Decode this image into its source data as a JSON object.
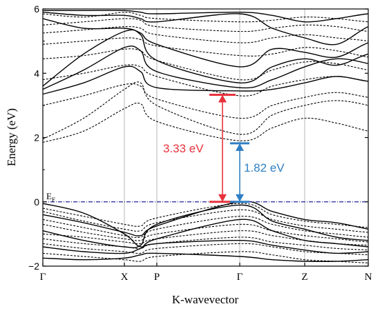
{
  "chart_data": {
    "type": "line",
    "title": "",
    "xlabel": "K-wavevector",
    "ylabel": "Energy (eV)",
    "ylim": [
      -2,
      6
    ],
    "yticks": [
      -2,
      0,
      2,
      4,
      6
    ],
    "kpath": [
      "Γ",
      "X",
      "P",
      "Γ",
      "Z",
      "N"
    ],
    "fermi_label": "E",
    "fermi_label_sub": "F",
    "fermi_level": 0,
    "colors": {
      "axis": "#000000",
      "gap_red": "#e8323c",
      "gap_blue": "#2f7fc4",
      "fermi_line": "#1f1fa0",
      "grid": "#b5b5b5"
    },
    "annotations": [
      {
        "label": "3.33 eV",
        "value": 3.33,
        "color": "#e8323c"
      },
      {
        "label": "1.82 eV",
        "value": 1.82,
        "color": "#2f7fc4"
      }
    ],
    "band_sets": [
      {
        "style": "solid",
        "bands": [
          [
            3.35,
            3.7,
            4.2,
            4.05,
            3.55,
            3.45,
            3.5,
            3.7,
            3.9,
            3.75,
            3.7
          ],
          [
            3.5,
            4.1,
            4.8,
            4.7,
            4.05,
            3.55,
            3.8,
            4.2,
            4.45,
            4.3,
            4.0
          ],
          [
            3.6,
            4.6,
            5.3,
            5.2,
            4.4,
            3.7,
            4.2,
            4.45,
            4.25,
            4.6,
            4.8
          ],
          [
            5.7,
            5.4,
            5.4,
            5.25,
            4.9,
            4.2,
            4.75,
            4.65,
            4.5,
            4.95,
            5.2
          ],
          [
            5.9,
            5.8,
            5.8,
            5.7,
            5.6,
            5.85,
            5.4,
            5.1,
            4.9,
            5.45,
            5.75
          ],
          [
            5.95,
            5.95,
            5.95,
            5.9,
            5.85,
            5.9,
            5.8,
            5.6,
            5.7,
            5.85,
            5.9
          ],
          [
            -0.4,
            -0.65,
            -0.95,
            -1.05,
            -0.75,
            0.0,
            -0.3,
            -0.55,
            -0.65,
            -0.85,
            -1.05
          ],
          [
            -0.9,
            -1.2,
            -1.4,
            -1.35,
            -0.7,
            -0.1,
            -0.6,
            -0.85,
            -1.1,
            -1.2,
            -1.2
          ],
          [
            -0.05,
            -0.35,
            -1.0,
            -1.4,
            -1.15,
            -0.55,
            -0.9,
            -1.2,
            -1.3,
            -1.4,
            -1.5
          ],
          [
            -1.4,
            -1.55,
            -1.6,
            -1.45,
            -1.3,
            -1.2,
            -1.35,
            -1.5,
            -1.6,
            -1.55,
            -1.45
          ],
          [
            -1.75,
            -1.8,
            -1.75,
            -1.65,
            -1.6,
            -1.7,
            -1.8,
            -1.85,
            -1.85,
            -1.8,
            -1.75
          ]
        ]
      },
      {
        "style": "dashed",
        "bands": [
          [
            1.85,
            2.2,
            2.9,
            3.05,
            2.5,
            1.9,
            2.3,
            2.6,
            2.45,
            2.2,
            2.0
          ],
          [
            1.95,
            2.6,
            3.5,
            3.7,
            3.0,
            2.1,
            2.7,
            3.0,
            3.15,
            3.0,
            2.7
          ],
          [
            3.0,
            3.3,
            3.65,
            3.6,
            3.2,
            2.6,
            3.0,
            3.25,
            3.4,
            3.25,
            3.1
          ],
          [
            3.8,
            4.0,
            4.25,
            4.2,
            3.9,
            3.3,
            3.6,
            3.8,
            3.9,
            3.75,
            3.55
          ],
          [
            4.45,
            4.55,
            4.75,
            4.7,
            4.4,
            3.8,
            4.1,
            4.35,
            4.3,
            4.1,
            3.95
          ],
          [
            4.9,
            5.0,
            5.1,
            5.05,
            4.85,
            4.55,
            4.6,
            4.8,
            4.7,
            4.5,
            4.3
          ],
          [
            5.25,
            5.35,
            5.45,
            5.4,
            5.2,
            4.95,
            5.1,
            5.2,
            5.1,
            5.0,
            4.8
          ],
          [
            5.5,
            5.6,
            5.7,
            5.65,
            5.45,
            5.3,
            5.4,
            5.5,
            5.45,
            5.3,
            5.2
          ],
          [
            5.85,
            5.75,
            5.9,
            5.8,
            5.7,
            5.6,
            5.65,
            5.75,
            5.7,
            5.6,
            5.55
          ],
          [
            -0.2,
            -0.45,
            -0.7,
            -0.75,
            -0.5,
            -0.05,
            -0.4,
            -0.6,
            -0.7,
            -0.8,
            -0.9
          ],
          [
            -0.3,
            -0.6,
            -0.85,
            -0.9,
            -0.65,
            -0.25,
            -0.55,
            -0.75,
            -0.85,
            -0.95,
            -1.0
          ],
          [
            -0.55,
            -0.8,
            -1.05,
            -1.1,
            -0.85,
            -0.45,
            -0.7,
            -0.9,
            -1.0,
            -1.1,
            -1.15
          ],
          [
            -0.7,
            -0.95,
            -1.15,
            -1.2,
            -1.0,
            -0.7,
            -0.9,
            -1.05,
            -1.15,
            -1.25,
            -1.3
          ],
          [
            -1.0,
            -1.1,
            -1.25,
            -1.3,
            -1.15,
            -0.9,
            -1.05,
            -1.2,
            -1.3,
            -1.35,
            -1.4
          ],
          [
            -1.15,
            -1.3,
            -1.4,
            -1.45,
            -1.3,
            -1.1,
            -1.25,
            -1.35,
            -1.45,
            -1.5,
            -1.55
          ],
          [
            -1.3,
            -1.45,
            -1.55,
            -1.6,
            -1.45,
            -1.3,
            -1.4,
            -1.55,
            -1.6,
            -1.65,
            -1.7
          ],
          [
            -1.6,
            -1.7,
            -1.8,
            -1.85,
            -1.7,
            -1.55,
            -1.65,
            -1.8,
            -1.85,
            -1.9,
            -1.9
          ]
        ]
      }
    ]
  }
}
